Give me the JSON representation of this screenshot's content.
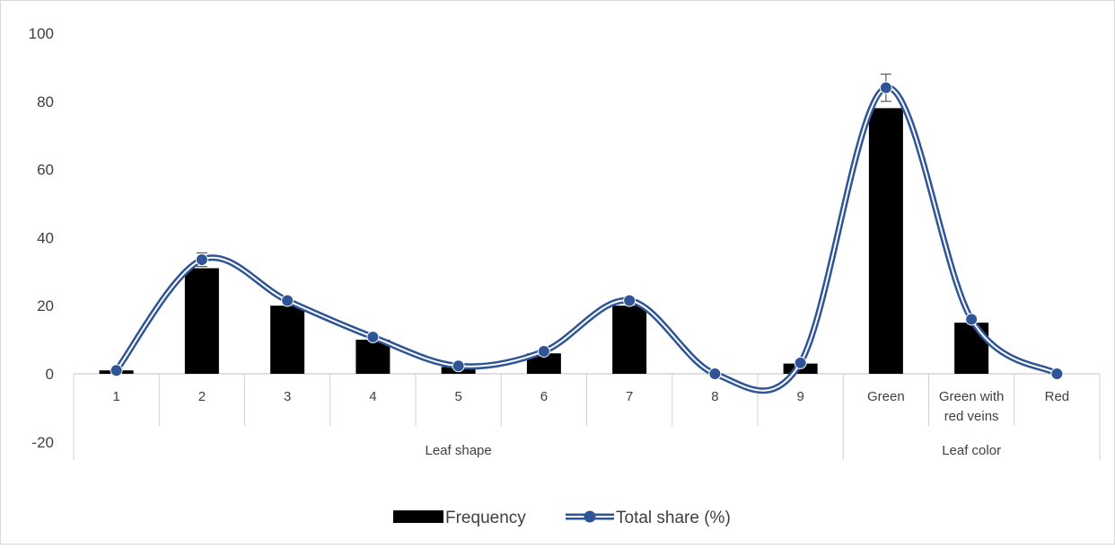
{
  "chart_data": {
    "type": "bar",
    "categories": [
      "1",
      "2",
      "3",
      "4",
      "5",
      "6",
      "7",
      "8",
      "9",
      "Green",
      "Green with red veins",
      "Red"
    ],
    "category_lines": [
      [
        "1"
      ],
      [
        "2"
      ],
      [
        "3"
      ],
      [
        "4"
      ],
      [
        "5"
      ],
      [
        "6"
      ],
      [
        "7"
      ],
      [
        "8"
      ],
      [
        "9"
      ],
      [
        "Green"
      ],
      [
        "Green with",
        "red veins"
      ],
      [
        "Red"
      ]
    ],
    "groups": [
      {
        "label": "Leaf shape",
        "categories": [
          "1",
          "2",
          "3",
          "4",
          "5",
          "6",
          "7",
          "8",
          "9"
        ]
      },
      {
        "label": "Leaf color",
        "categories": [
          "Green",
          "Green with red veins",
          "Red"
        ]
      }
    ],
    "series": [
      {
        "name": "Frequency",
        "type": "bar",
        "color": "#000000",
        "values": [
          1,
          31,
          20,
          10,
          2,
          6,
          20,
          0,
          3,
          78,
          15,
          0
        ]
      },
      {
        "name": "Total share (%)",
        "type": "line",
        "smooth": true,
        "color": "#2F5597",
        "values": [
          1,
          33.5,
          21.5,
          10.8,
          2.3,
          6.6,
          21.5,
          0,
          3.2,
          84,
          16,
          0
        ],
        "error_bars": [
          0,
          2,
          1,
          0,
          0,
          0,
          1,
          0,
          0,
          4,
          0,
          0
        ]
      }
    ],
    "yticks": [
      "-20",
      "0",
      "20",
      "40",
      "60",
      "80",
      "100"
    ],
    "ylim": [
      -20,
      100
    ],
    "grid": false,
    "legend_position": "bottom"
  }
}
